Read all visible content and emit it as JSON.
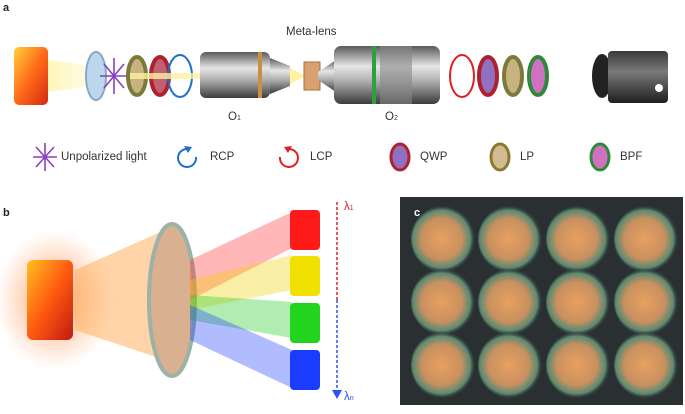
{
  "panel_a": {
    "letter": "a",
    "metalens_label": "Meta-lens",
    "objective1_label": "O",
    "objective1_sub": "1",
    "objective2_label": "O",
    "objective2_sub": "2"
  },
  "legend": {
    "items": [
      {
        "label": "Unpolarized light",
        "icon": "unpolarized-light-icon"
      },
      {
        "label": "RCP",
        "icon": "rcp-arrow-icon"
      },
      {
        "label": "LCP",
        "icon": "lcp-arrow-icon"
      },
      {
        "label": "QWP",
        "icon": "qwp-disk-icon"
      },
      {
        "label": "LP",
        "icon": "lp-disk-icon"
      },
      {
        "label": "BPF",
        "icon": "bpf-disk-icon"
      }
    ]
  },
  "panel_b": {
    "letter": "b",
    "lambda_top": "λ",
    "lambda_top_sub": "1",
    "lambda_bottom": "λ",
    "lambda_bottom_sub": "n",
    "spectrum_colors": [
      "#ff1a1a",
      "#f2e000",
      "#22d41e",
      "#1a3cff"
    ]
  },
  "panel_c": {
    "letter": "c"
  },
  "colors": {
    "rcp": "#1a6fd1",
    "lcp": "#e02020",
    "unpolarized": "#8a3fc0"
  }
}
